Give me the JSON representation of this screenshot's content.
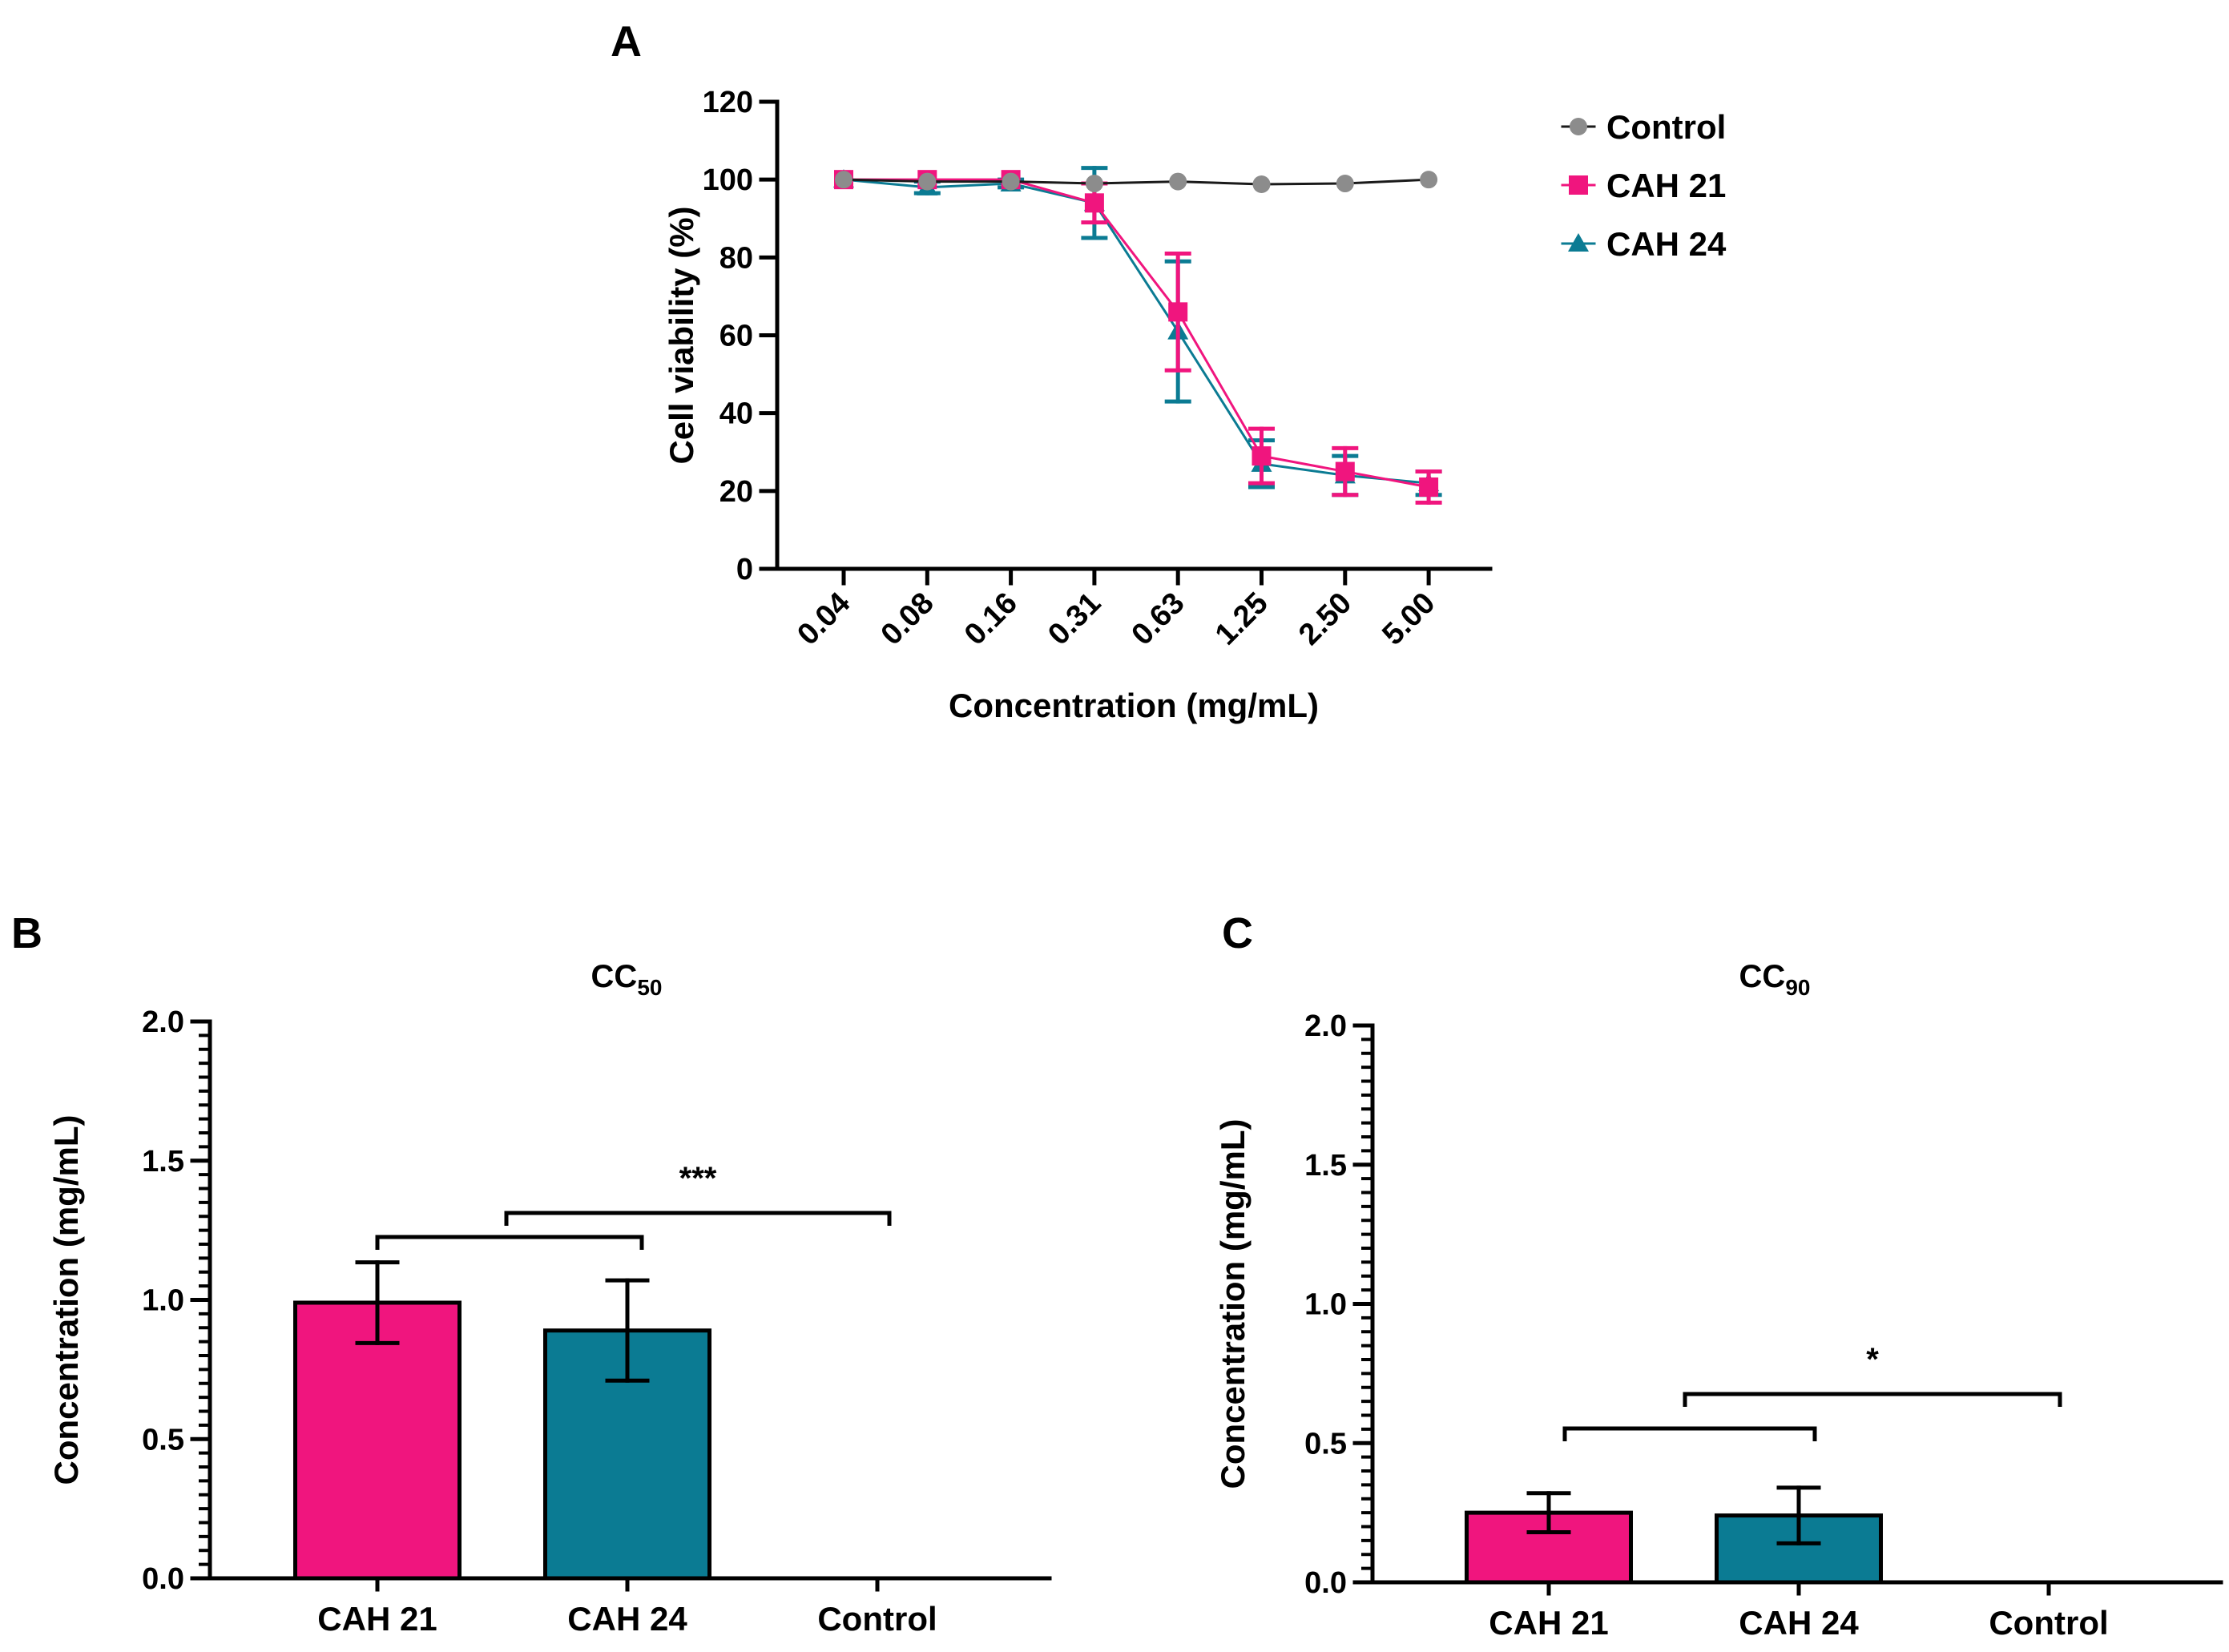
{
  "colors": {
    "control": "#8c8c8c",
    "cah21": "#f0157e",
    "cah24": "#0b7b93",
    "axis": "#000000"
  },
  "chart_data": [
    {
      "panel": "A",
      "type": "line",
      "xlabel": "Concentration (mg/mL)",
      "ylabel": "Cell viability (%)",
      "categories": [
        "0.04",
        "0.08",
        "0.16",
        "0.31",
        "0.63",
        "1.25",
        "2.50",
        "5.00"
      ],
      "ylim": [
        0,
        120
      ],
      "yticks": [
        "0",
        "20",
        "40",
        "60",
        "80",
        "100",
        "120"
      ],
      "legend_position": "top-right",
      "series": [
        {
          "name": "Control",
          "marker": "circle",
          "values": [
            100,
            99.5,
            99.5,
            99,
            99.5,
            98.8,
            99,
            100
          ],
          "errors": [
            0,
            0,
            0,
            0,
            0,
            0,
            0,
            0
          ]
        },
        {
          "name": "CAH 21",
          "marker": "square",
          "values": [
            100,
            100,
            100,
            94,
            66,
            29,
            25,
            21
          ],
          "errors": [
            0,
            0,
            0,
            5,
            15,
            7,
            6,
            4
          ]
        },
        {
          "name": "CAH 24",
          "marker": "triangle",
          "values": [
            100,
            98,
            99,
            94,
            61,
            27,
            24,
            22
          ],
          "errors": [
            0,
            1.5,
            1,
            9,
            18,
            6,
            5,
            3
          ]
        }
      ]
    },
    {
      "panel": "B",
      "type": "bar",
      "title": "CC",
      "title_sub": "50",
      "ylabel": "Concentration (mg/mL)",
      "categories": [
        "CAH 21",
        "CAH 24",
        "Control"
      ],
      "values": [
        0.99,
        0.89,
        0
      ],
      "errors": [
        0.145,
        0.18,
        0
      ],
      "ylim": [
        0,
        2.0
      ],
      "yticks": [
        "0.0",
        "0.5",
        "1.0",
        "1.5",
        "2.0"
      ],
      "significance": "***"
    },
    {
      "panel": "C",
      "type": "bar",
      "title": "CC",
      "title_sub": "90",
      "ylabel": "Concentration (mg/mL)",
      "categories": [
        "CAH 21",
        "CAH 24",
        "Control"
      ],
      "values": [
        0.25,
        0.24,
        0
      ],
      "errors": [
        0.07,
        0.1,
        0
      ],
      "ylim": [
        0,
        2.0
      ],
      "yticks": [
        "0.0",
        "0.5",
        "1.0",
        "1.5",
        "2.0"
      ],
      "significance": "*"
    }
  ]
}
